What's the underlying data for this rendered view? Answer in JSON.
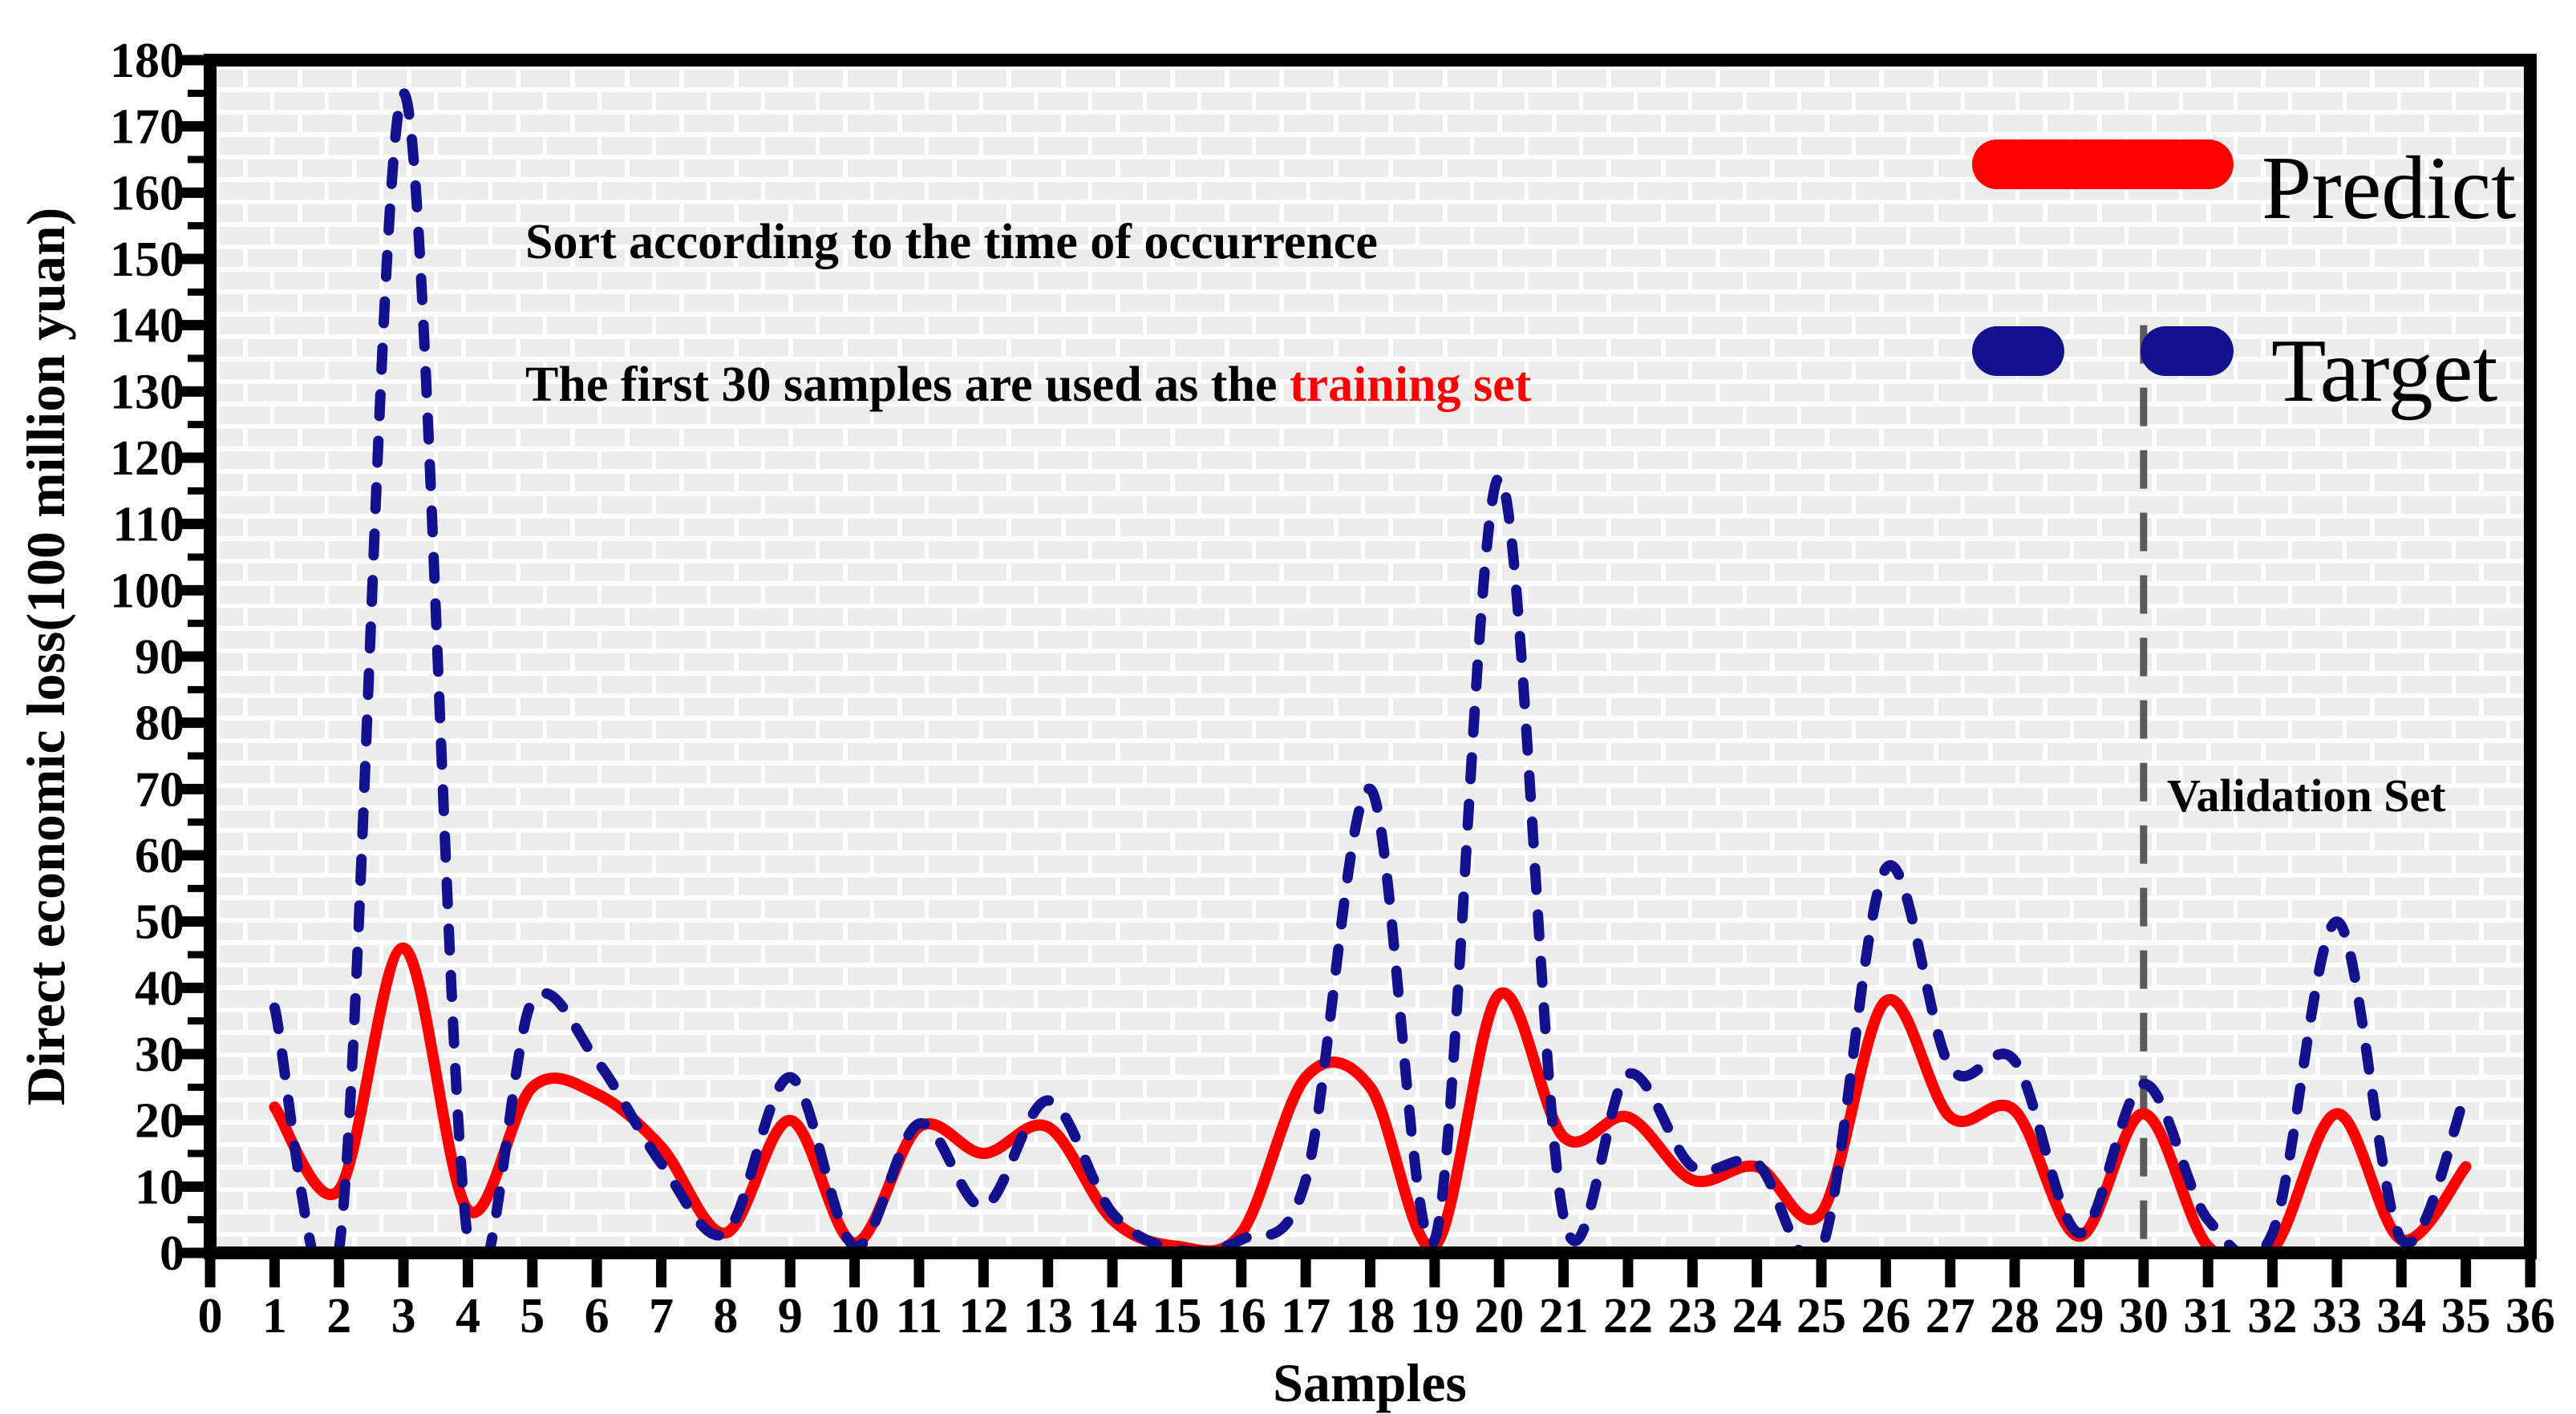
{
  "chart_data": {
    "type": "line",
    "title": "",
    "xlabel": "Samples",
    "ylabel": "Direct economic loss(100 million yuan)",
    "xlim": [
      0,
      36
    ],
    "ylim": [
      0,
      180
    ],
    "x_ticks": [
      0,
      1,
      2,
      3,
      4,
      5,
      6,
      7,
      8,
      9,
      10,
      11,
      12,
      13,
      14,
      15,
      16,
      17,
      18,
      19,
      20,
      21,
      22,
      23,
      24,
      25,
      26,
      27,
      28,
      29,
      30,
      31,
      32,
      33,
      34,
      35,
      36
    ],
    "y_major_ticks": [
      0,
      10,
      20,
      30,
      40,
      50,
      60,
      70,
      80,
      90,
      100,
      110,
      120,
      130,
      140,
      150,
      160,
      170,
      180
    ],
    "y_minor_step": 5,
    "grid": "light-gray brick pattern background",
    "legend_position": "top-right",
    "x": [
      1,
      2,
      3,
      4,
      5,
      6,
      7,
      8,
      9,
      10,
      11,
      12,
      13,
      14,
      15,
      16,
      17,
      18,
      19,
      20,
      21,
      22,
      23,
      24,
      25,
      26,
      27,
      28,
      29,
      30,
      31,
      32,
      33,
      34,
      35
    ],
    "series": [
      {
        "name": "Predict",
        "style": "solid",
        "color": "#ff0000",
        "values": [
          22,
          9.5,
          46,
          6.5,
          25,
          24,
          16,
          3,
          20,
          1.5,
          19,
          15,
          19,
          5,
          1,
          3,
          26.5,
          25,
          1,
          39,
          17.5,
          20.5,
          11,
          13,
          6,
          38,
          20.5,
          21.5,
          2.5,
          21,
          1,
          0.5,
          21,
          2,
          13
        ]
      },
      {
        "name": "Target",
        "style": "dashed",
        "color": "#12128f",
        "values": [
          37,
          0.5,
          175,
          2,
          38,
          29,
          13.5,
          3,
          26.5,
          1,
          19.5,
          7,
          23,
          6,
          0.5,
          2,
          11,
          70,
          2,
          117,
          5.5,
          27,
          13,
          13.5,
          0.5,
          58,
          28,
          29,
          3,
          25.5,
          5,
          3,
          50,
          2,
          24
        ]
      }
    ],
    "annotations": [
      {
        "text": "Sort according to the time of occurrence"
      },
      {
        "text_black": "The first 30 samples are used as the ",
        "text_red": "training set"
      }
    ],
    "separator": {
      "x": 30,
      "label": "Validation Set",
      "top_value": 140
    }
  },
  "colors": {
    "predict": "#ff0000",
    "target": "#12128f",
    "divider": "#5a5a5a",
    "plot_cell": "#ececec",
    "frame": "#000000",
    "training_set_text": "#fe0000"
  }
}
